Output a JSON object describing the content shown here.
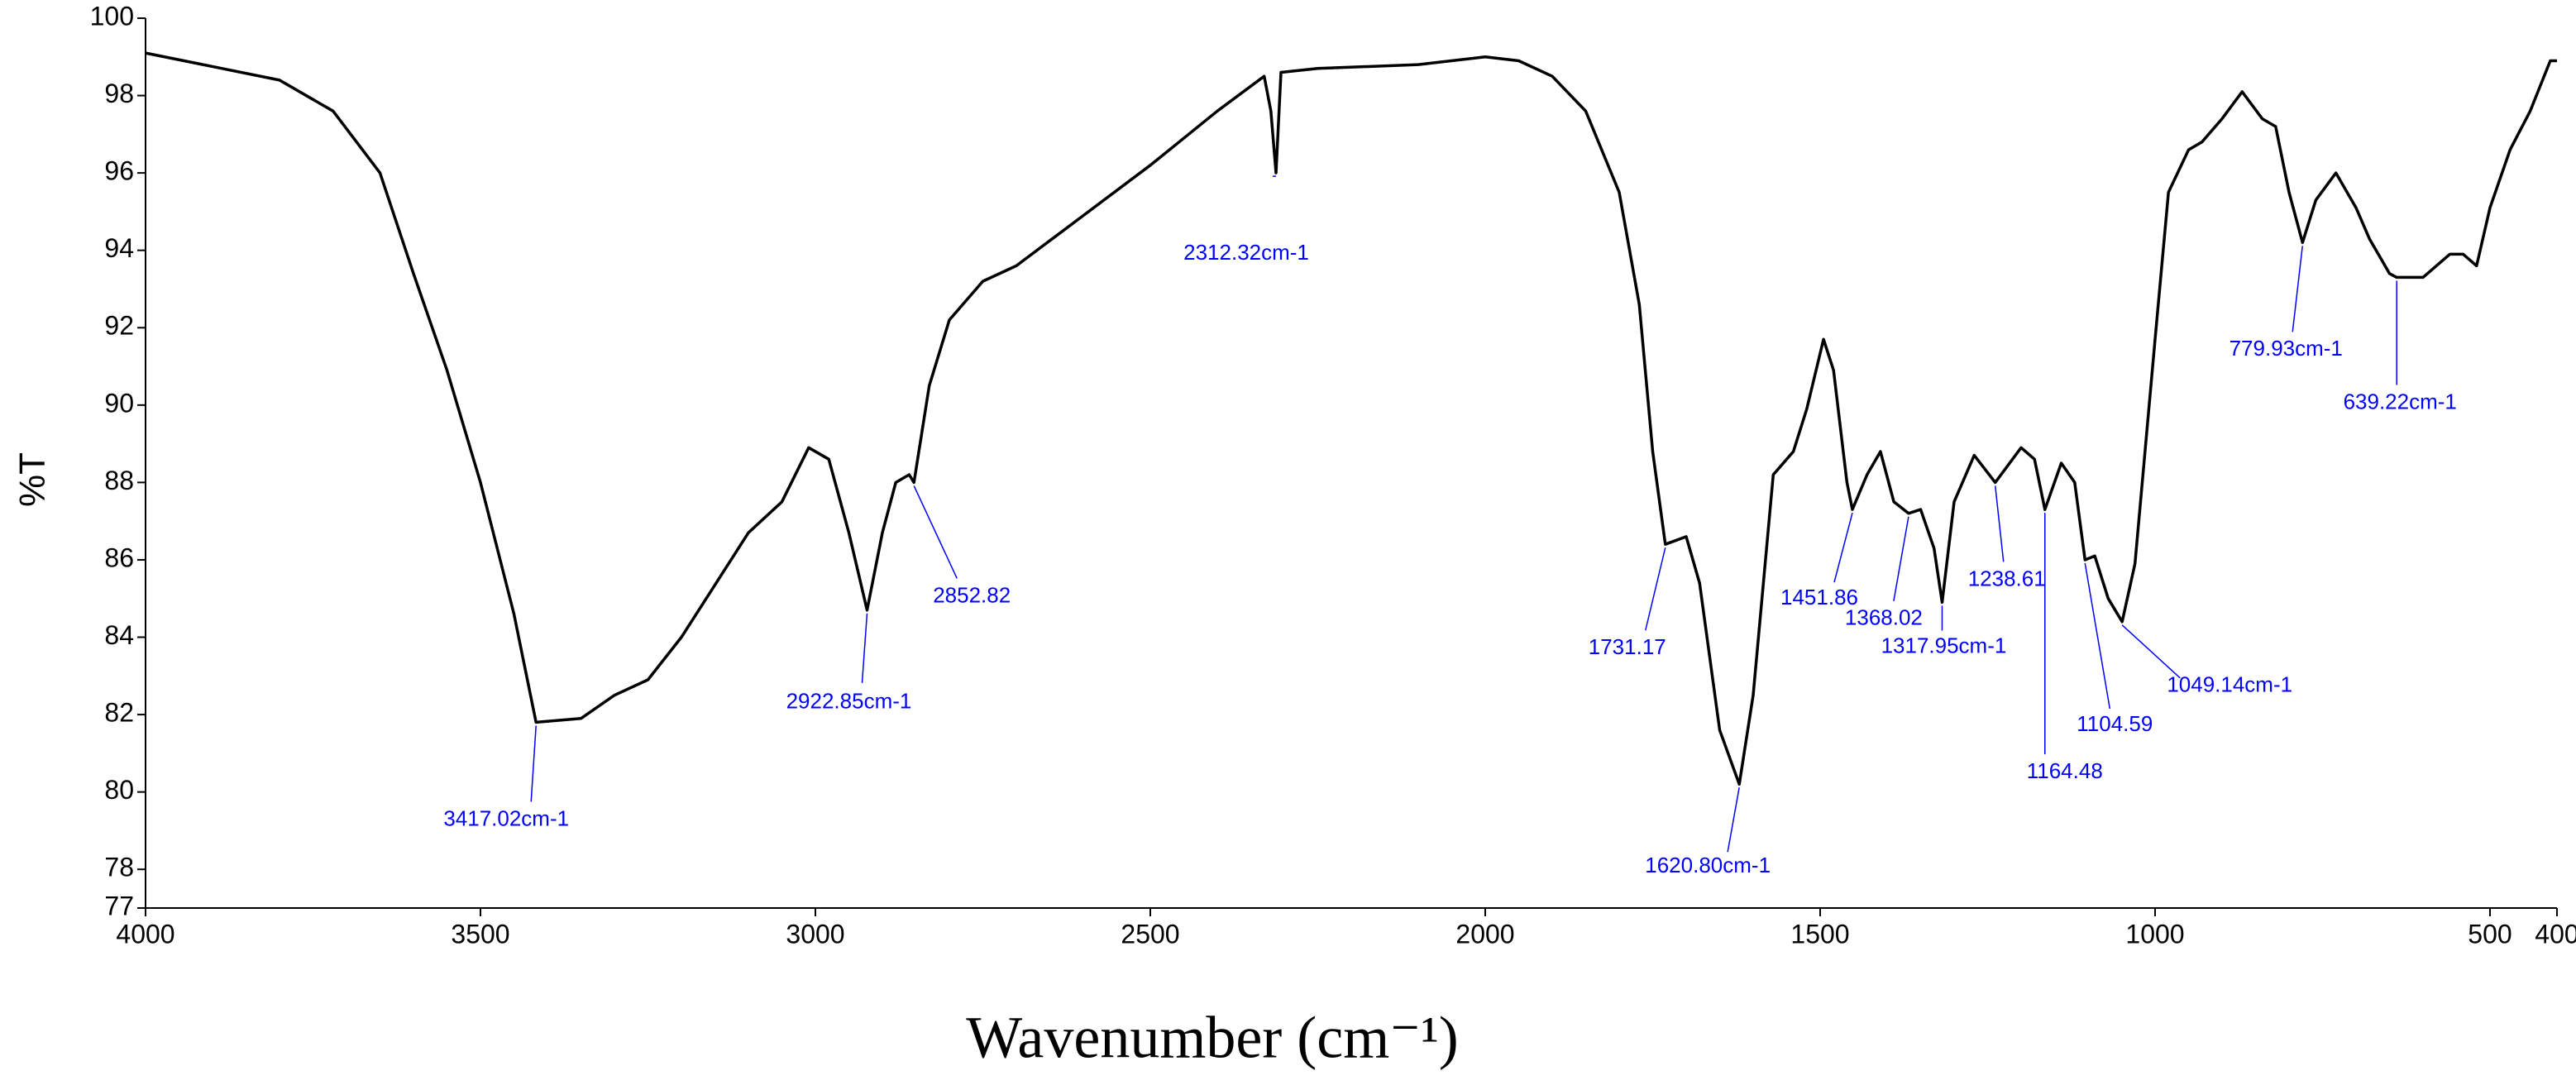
{
  "chart_data": {
    "type": "line",
    "xlabel": "Wavenumber (cm⁻¹)",
    "ylabel": "%T",
    "x": [
      4000,
      3800,
      3720,
      3650,
      3600,
      3550,
      3500,
      3450,
      3417.02,
      3350,
      3300,
      3250,
      3200,
      3100,
      3050,
      3010,
      2980,
      2950,
      2922.85,
      2900,
      2880,
      2860,
      2852.82,
      2830,
      2800,
      2750,
      2700,
      2600,
      2500,
      2400,
      2330,
      2320,
      2312.32,
      2305,
      2250,
      2100,
      2000,
      1950,
      1900,
      1850,
      1800,
      1770,
      1750,
      1731.17,
      1700,
      1680,
      1650,
      1620.8,
      1600,
      1570,
      1540,
      1520,
      1495,
      1480,
      1460,
      1451.86,
      1430,
      1410,
      1390,
      1368.02,
      1350,
      1330,
      1317.95,
      1300,
      1270,
      1238.61,
      1200,
      1180,
      1164.48,
      1140,
      1120,
      1104.59,
      1090,
      1070,
      1049.14,
      1030,
      1000,
      980,
      950,
      930,
      900,
      870,
      840,
      820,
      800,
      779.93,
      760,
      730,
      700,
      680,
      650,
      639.22,
      600,
      560,
      540,
      520,
      500,
      470,
      440,
      410,
      400
    ],
    "values": [
      99.1,
      98.4,
      97.6,
      96.0,
      93.4,
      90.9,
      88.0,
      84.6,
      81.8,
      81.9,
      82.5,
      82.9,
      84.0,
      86.7,
      87.5,
      88.9,
      88.6,
      86.7,
      84.7,
      86.7,
      88.0,
      88.2,
      88.0,
      90.5,
      92.2,
      93.2,
      93.6,
      94.9,
      96.2,
      97.6,
      98.5,
      97.6,
      96.0,
      98.6,
      98.7,
      98.8,
      99.0,
      98.9,
      98.5,
      97.6,
      95.5,
      92.6,
      88.8,
      86.4,
      86.6,
      85.4,
      81.6,
      80.2,
      82.5,
      88.2,
      88.8,
      89.9,
      91.7,
      90.9,
      88.0,
      87.3,
      88.2,
      88.8,
      87.5,
      87.2,
      87.3,
      86.3,
      84.9,
      87.5,
      88.7,
      88.0,
      88.9,
      88.6,
      87.3,
      88.5,
      88.0,
      86.0,
      86.1,
      85.0,
      84.4,
      85.9,
      91.7,
      95.5,
      96.6,
      96.8,
      97.4,
      98.1,
      97.4,
      97.2,
      95.5,
      94.2,
      95.3,
      96.0,
      95.1,
      94.3,
      93.4,
      93.3,
      93.3,
      93.9,
      93.9,
      93.6,
      95.1,
      96.6,
      97.6,
      98.9,
      98.9
    ],
    "color": "#000000",
    "xlim": [
      4000,
      400
    ],
    "xticks": [
      4000,
      3500,
      3000,
      2500,
      2000,
      1500,
      1000,
      500,
      400
    ],
    "ylim": [
      77,
      100
    ],
    "yticks": [
      77,
      78,
      80,
      82,
      84,
      86,
      88,
      90,
      92,
      94,
      96,
      98,
      100
    ],
    "annotation_color": "#0000ff",
    "annotations": [
      {
        "text": "3417.02cm-1",
        "x": 3417.02
      },
      {
        "text": "2922.85cm-1",
        "x": 2922.85
      },
      {
        "text": "2852.82",
        "x": 2852.82
      },
      {
        "text": "2312.32cm-1",
        "x": 2312.32
      },
      {
        "text": "1731.17",
        "x": 1731.17
      },
      {
        "text": "1620.80cm-1",
        "x": 1620.8
      },
      {
        "text": "1451.86",
        "x": 1451.86
      },
      {
        "text": "1368.02",
        "x": 1368.02
      },
      {
        "text": "1317.95cm-1",
        "x": 1317.95
      },
      {
        "text": "1238.61",
        "x": 1238.61
      },
      {
        "text": "1164.48",
        "x": 1164.48
      },
      {
        "text": "1104.59",
        "x": 1104.59
      },
      {
        "text": "1049.14cm-1",
        "x": 1049.14
      },
      {
        "text": "779.93cm-1",
        "x": 779.93
      },
      {
        "text": "639.22cm-1",
        "x": 639.22
      }
    ]
  }
}
